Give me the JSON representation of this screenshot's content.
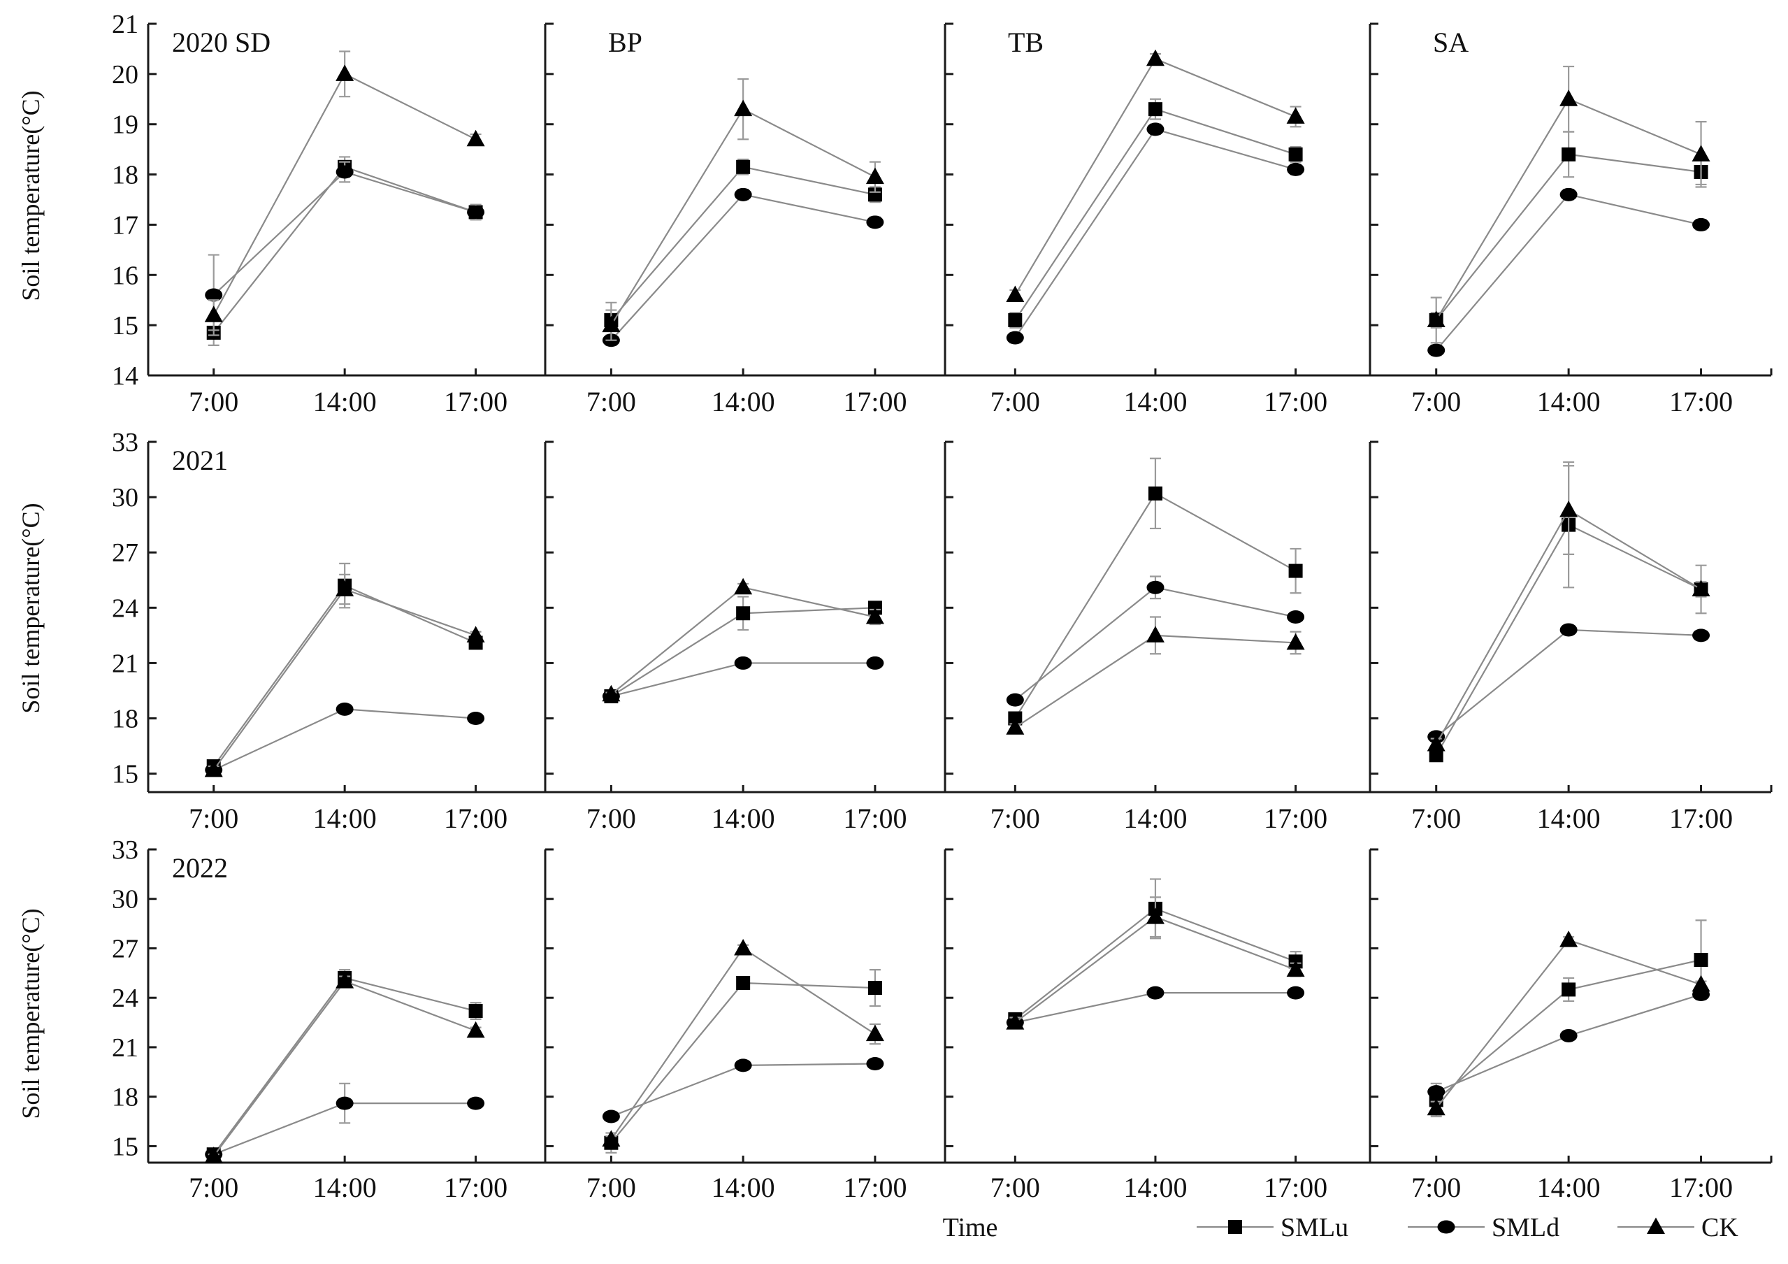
{
  "figure": {
    "ylabel": "Soil temperature(°C)",
    "xlabel": "Time",
    "years": [
      "2020",
      "2021",
      "2022"
    ],
    "legend": [
      {
        "name": "SMLu",
        "marker": "square"
      },
      {
        "name": "SMLd",
        "marker": "circle"
      },
      {
        "name": "CK",
        "marker": "triangle"
      }
    ]
  },
  "chart_data": [
    {
      "type": "line",
      "year": "2020",
      "site": "SD",
      "panel_label": "2020  SD",
      "categories": [
        "7:00",
        "14:00",
        "17:00"
      ],
      "ylim": [
        14,
        21
      ],
      "yticks": [
        14,
        15,
        16,
        17,
        18,
        19,
        20,
        21
      ],
      "series": [
        {
          "name": "SMLu",
          "values": [
            14.85,
            18.15,
            17.25
          ],
          "err": [
            0.25,
            0.2,
            0.15
          ]
        },
        {
          "name": "SMLd",
          "values": [
            15.6,
            18.05,
            17.25
          ],
          "err": [
            0.8,
            0.2,
            0.15
          ]
        },
        {
          "name": "CK",
          "values": [
            15.2,
            20.0,
            18.7
          ],
          "err": [
            0.3,
            0.45,
            0.1
          ]
        }
      ]
    },
    {
      "type": "line",
      "year": "2020",
      "site": "BP",
      "panel_label": "BP",
      "categories": [
        "7:00",
        "14:00",
        "17:00"
      ],
      "ylim": [
        14,
        21
      ],
      "yticks": [
        14,
        15,
        16,
        17,
        18,
        19,
        20,
        21
      ],
      "series": [
        {
          "name": "SMLu",
          "values": [
            15.1,
            18.15,
            17.6
          ],
          "err": [
            0.35,
            0.15,
            0.15
          ]
        },
        {
          "name": "SMLd",
          "values": [
            14.7,
            17.6,
            17.05
          ],
          "err": [
            0.1,
            0.1,
            0.1
          ]
        },
        {
          "name": "CK",
          "values": [
            15.0,
            19.3,
            17.95
          ],
          "err": [
            0.3,
            0.6,
            0.3
          ]
        }
      ]
    },
    {
      "type": "line",
      "year": "2020",
      "site": "TB",
      "panel_label": "TB",
      "categories": [
        "7:00",
        "14:00",
        "17:00"
      ],
      "ylim": [
        14,
        21
      ],
      "yticks": [
        14,
        15,
        16,
        17,
        18,
        19,
        20,
        21
      ],
      "series": [
        {
          "name": "SMLu",
          "values": [
            15.1,
            19.3,
            18.4
          ],
          "err": [
            0.15,
            0.2,
            0.15
          ]
        },
        {
          "name": "SMLd",
          "values": [
            14.75,
            18.9,
            18.1
          ],
          "err": [
            0.1,
            0.1,
            0.1
          ]
        },
        {
          "name": "CK",
          "values": [
            15.6,
            20.3,
            19.15
          ],
          "err": [
            0.1,
            0.1,
            0.2
          ]
        }
      ]
    },
    {
      "type": "line",
      "year": "2020",
      "site": "SA",
      "panel_label": "SA",
      "categories": [
        "7:00",
        "14:00",
        "17:00"
      ],
      "ylim": [
        14,
        21
      ],
      "yticks": [
        14,
        15,
        16,
        17,
        18,
        19,
        20,
        21
      ],
      "series": [
        {
          "name": "SMLu",
          "values": [
            15.1,
            18.4,
            18.05
          ],
          "err": [
            0.15,
            0.45,
            0.25
          ]
        },
        {
          "name": "SMLd",
          "values": [
            14.5,
            17.6,
            17.0
          ],
          "err": [
            0.1,
            0.1,
            0.1
          ]
        },
        {
          "name": "CK",
          "values": [
            15.1,
            19.5,
            18.4
          ],
          "err": [
            0.45,
            0.65,
            0.65
          ]
        }
      ]
    },
    {
      "type": "line",
      "year": "2021",
      "site": "SD",
      "panel_label": "2021",
      "categories": [
        "7:00",
        "14:00",
        "17:00"
      ],
      "ylim": [
        14,
        33
      ],
      "yticks": [
        15,
        18,
        21,
        24,
        27,
        30,
        33
      ],
      "series": [
        {
          "name": "SMLu",
          "values": [
            15.4,
            25.2,
            22.1
          ],
          "err": [
            0.2,
            1.2,
            0.25
          ]
        },
        {
          "name": "SMLd",
          "values": [
            15.2,
            18.5,
            18.0
          ],
          "err": [
            0.1,
            0.1,
            0.1
          ]
        },
        {
          "name": "CK",
          "values": [
            15.2,
            25.0,
            22.5
          ],
          "err": [
            0.2,
            0.8,
            0.2
          ]
        }
      ]
    },
    {
      "type": "line",
      "year": "2021",
      "site": "BP",
      "panel_label": "",
      "categories": [
        "7:00",
        "14:00",
        "17:00"
      ],
      "ylim": [
        14,
        33
      ],
      "yticks": [
        15,
        18,
        21,
        24,
        27,
        30,
        33
      ],
      "series": [
        {
          "name": "SMLu",
          "values": [
            19.2,
            23.7,
            24.0
          ],
          "err": [
            0.15,
            0.9,
            0.15
          ]
        },
        {
          "name": "SMLd",
          "values": [
            19.2,
            21.0,
            21.0
          ],
          "err": [
            0.1,
            0.1,
            0.1
          ]
        },
        {
          "name": "CK",
          "values": [
            19.3,
            25.1,
            23.5
          ],
          "err": [
            0.1,
            0.2,
            0.4
          ]
        }
      ]
    },
    {
      "type": "line",
      "year": "2021",
      "site": "TB",
      "panel_label": "",
      "categories": [
        "7:00",
        "14:00",
        "17:00"
      ],
      "ylim": [
        14,
        33
      ],
      "yticks": [
        15,
        18,
        21,
        24,
        27,
        30,
        33
      ],
      "series": [
        {
          "name": "SMLu",
          "values": [
            18.0,
            30.2,
            26.0
          ],
          "err": [
            0.3,
            1.9,
            1.2
          ]
        },
        {
          "name": "SMLd",
          "values": [
            19.0,
            25.1,
            23.5
          ],
          "err": [
            0.1,
            0.6,
            0.1
          ]
        },
        {
          "name": "CK",
          "values": [
            17.5,
            22.5,
            22.1
          ],
          "err": [
            0.2,
            1.0,
            0.6
          ]
        }
      ]
    },
    {
      "type": "line",
      "year": "2021",
      "site": "SA",
      "panel_label": "",
      "categories": [
        "7:00",
        "14:00",
        "17:00"
      ],
      "ylim": [
        14,
        33
      ],
      "yticks": [
        15,
        18,
        21,
        24,
        27,
        30,
        33
      ],
      "series": [
        {
          "name": "SMLu",
          "values": [
            16.0,
            28.5,
            25.0
          ],
          "err": [
            0.2,
            3.4,
            1.3
          ]
        },
        {
          "name": "SMLd",
          "values": [
            17.0,
            22.8,
            22.5
          ],
          "err": [
            0.1,
            0.1,
            0.1
          ]
        },
        {
          "name": "CK",
          "values": [
            16.6,
            29.3,
            25.0
          ],
          "err": [
            0.3,
            2.4,
            0.4
          ]
        }
      ]
    },
    {
      "type": "line",
      "year": "2022",
      "site": "SD",
      "panel_label": "2022",
      "categories": [
        "7:00",
        "14:00",
        "17:00"
      ],
      "ylim": [
        14,
        33
      ],
      "yticks": [
        15,
        18,
        21,
        24,
        27,
        30,
        33
      ],
      "series": [
        {
          "name": "SMLu",
          "values": [
            14.5,
            25.2,
            23.2
          ],
          "err": [
            0.1,
            0.5,
            0.5
          ]
        },
        {
          "name": "SMLd",
          "values": [
            14.5,
            17.6,
            17.6
          ],
          "err": [
            0.1,
            1.2,
            0.1
          ]
        },
        {
          "name": "CK",
          "values": [
            14.4,
            25.0,
            22.0
          ],
          "err": [
            0.1,
            0.3,
            0.2
          ]
        }
      ]
    },
    {
      "type": "line",
      "year": "2022",
      "site": "BP",
      "panel_label": "",
      "categories": [
        "7:00",
        "14:00",
        "17:00"
      ],
      "ylim": [
        14,
        33
      ],
      "yticks": [
        15,
        18,
        21,
        24,
        27,
        30,
        33
      ],
      "series": [
        {
          "name": "SMLu",
          "values": [
            15.2,
            24.9,
            24.6
          ],
          "err": [
            0.6,
            0.2,
            1.1
          ]
        },
        {
          "name": "SMLd",
          "values": [
            16.8,
            19.9,
            20.0
          ],
          "err": [
            0.1,
            0.1,
            0.1
          ]
        },
        {
          "name": "CK",
          "values": [
            15.4,
            27.0,
            21.8
          ],
          "err": [
            0.2,
            0.2,
            0.6
          ]
        }
      ]
    },
    {
      "type": "line",
      "year": "2022",
      "site": "TB",
      "panel_label": "",
      "categories": [
        "7:00",
        "14:00",
        "17:00"
      ],
      "ylim": [
        14,
        33
      ],
      "yticks": [
        15,
        18,
        21,
        24,
        27,
        30,
        33
      ],
      "series": [
        {
          "name": "SMLu",
          "values": [
            22.7,
            29.4,
            26.2
          ],
          "err": [
            0.3,
            1.8,
            0.6
          ]
        },
        {
          "name": "SMLd",
          "values": [
            22.5,
            24.3,
            24.3
          ],
          "err": [
            0.1,
            0.1,
            0.1
          ]
        },
        {
          "name": "CK",
          "values": [
            22.5,
            28.9,
            25.7
          ],
          "err": [
            0.3,
            1.2,
            0.4
          ]
        }
      ]
    },
    {
      "type": "line",
      "year": "2022",
      "site": "SA",
      "panel_label": "",
      "categories": [
        "7:00",
        "14:00",
        "17:00"
      ],
      "ylim": [
        14,
        33
      ],
      "yticks": [
        15,
        18,
        21,
        24,
        27,
        30,
        33
      ],
      "series": [
        {
          "name": "SMLu",
          "values": [
            17.8,
            24.5,
            26.3
          ],
          "err": [
            1.0,
            0.7,
            2.4
          ]
        },
        {
          "name": "SMLd",
          "values": [
            18.3,
            21.7,
            24.2
          ],
          "err": [
            0.1,
            0.1,
            0.1
          ]
        },
        {
          "name": "CK",
          "values": [
            17.3,
            27.5,
            24.8
          ],
          "err": [
            0.4,
            0.2,
            0.2
          ]
        }
      ]
    }
  ]
}
